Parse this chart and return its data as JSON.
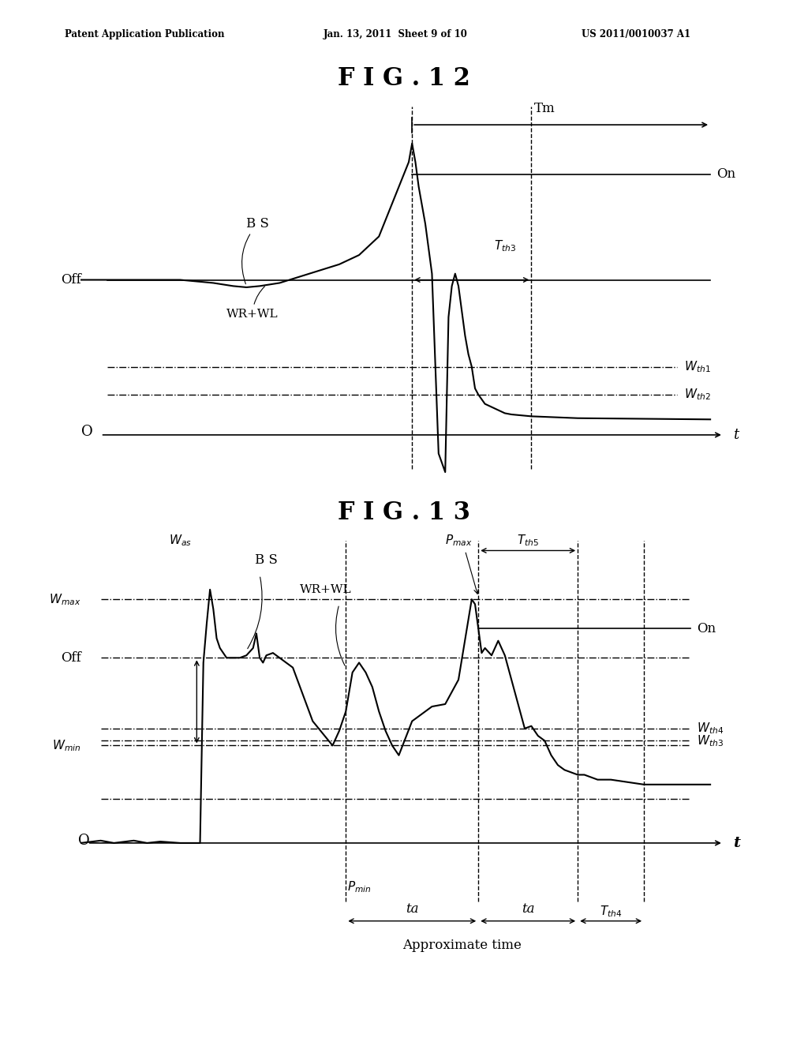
{
  "bg_color": "#ffffff",
  "header_left": "Patent Application Publication",
  "header_mid": "Jan. 13, 2011  Sheet 9 of 10",
  "header_right": "US 2011/0010037 A1",
  "fig12_title": "F I G . 1 2",
  "fig13_title": "F I G . 1 3"
}
